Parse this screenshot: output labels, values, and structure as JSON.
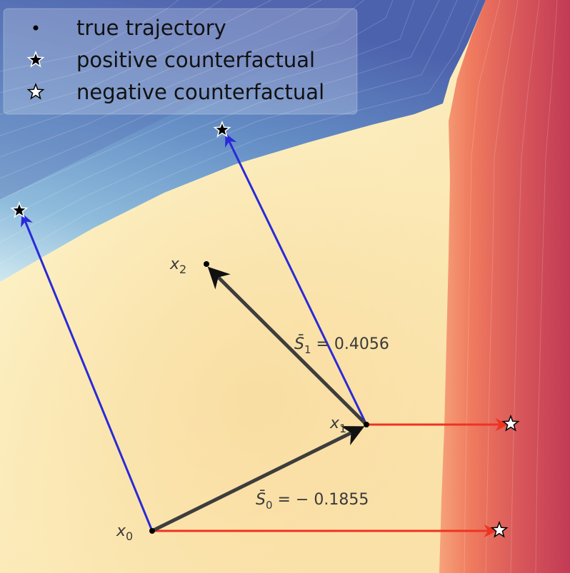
{
  "legend": {
    "items": [
      {
        "label": "true trajectory",
        "icon": "dot-icon"
      },
      {
        "label": "positive counterfactual",
        "icon": "black-star-icon"
      },
      {
        "label": "negative counterfactual",
        "icon": "white-star-icon"
      }
    ]
  },
  "points": {
    "x0": {
      "base": "x",
      "sub": "0"
    },
    "x1": {
      "base": "x",
      "sub": "1"
    },
    "x2": {
      "base": "x",
      "sub": "2"
    }
  },
  "annotations": {
    "s0": {
      "base": "S̄",
      "sub": "0",
      "value": " = − 0.1855"
    },
    "s1": {
      "base": "S̄",
      "sub": "1",
      "value": " = 0.4056"
    }
  },
  "colors": {
    "trajectory": "#3d3d3d",
    "positive": "#2a2ad8",
    "negative": "#ee3322"
  }
}
